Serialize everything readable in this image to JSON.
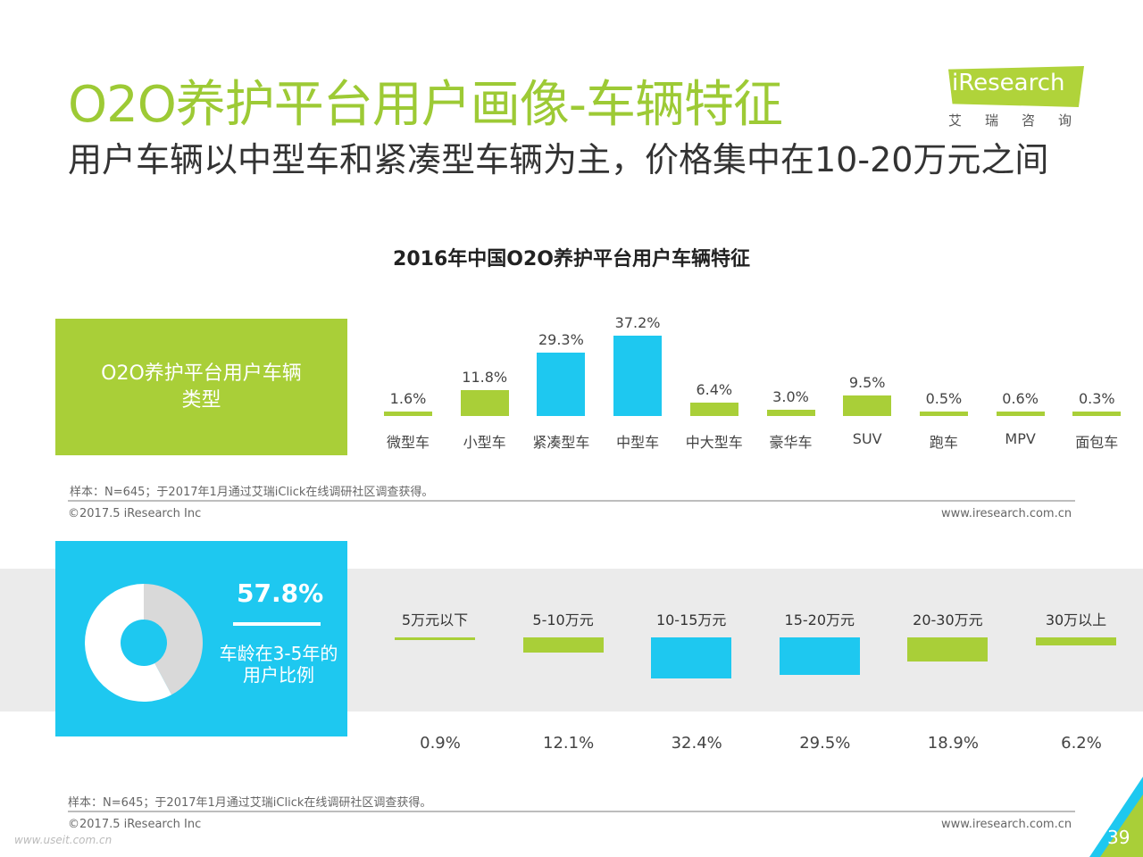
{
  "title": "O2O养护平台用户画像-车辆特征",
  "subtitle": "用户车辆以中型车和紧凑型车辆为主，价格集中在10-20万元之间",
  "logo": {
    "text": "iResearch",
    "sub": "艾瑞咨询"
  },
  "colors": {
    "green": "#a9cf38",
    "blue": "#1ec8f0",
    "gray": "#ebebeb",
    "title": "#9dca35"
  },
  "section1": {
    "panel_label": "O2O养护平台用户车辆类型",
    "note": "样本：N=645；于2017年1月通过艾瑞iClick在线调研社区调查获得。",
    "copyright": "©2017.5 iResearch Inc",
    "url": "www.iresearch.com.cn"
  },
  "section2": {
    "big_pct": "57.8%",
    "donut_label": "车龄在3-5年的用户比例",
    "donut_value": 57.8,
    "note": "样本：N=645；于2017年1月通过艾瑞iClick在线调研社区调查获得。",
    "copyright": "©2017.5 iResearch Inc",
    "url": "www.iresearch.com.cn"
  },
  "page_number": "39",
  "watermark": "www.useit.com.cn",
  "chart_data": [
    {
      "type": "bar",
      "title": "2016年中国O2O养护平台用户车辆特征",
      "categories": [
        "微型车",
        "小型车",
        "紧凑型车",
        "中型车",
        "中大型车",
        "豪华车",
        "SUV",
        "跑车",
        "MPV",
        "面包车"
      ],
      "values": [
        1.6,
        11.8,
        29.3,
        37.2,
        6.4,
        3.0,
        9.5,
        0.5,
        0.6,
        0.3
      ],
      "labels": [
        "1.6%",
        "11.8%",
        "29.3%",
        "37.2%",
        "6.4%",
        "3.0%",
        "9.5%",
        "0.5%",
        "0.6%",
        "0.3%"
      ],
      "highlight": [
        2,
        3
      ]
    },
    {
      "type": "bar",
      "categories": [
        "5万元以下",
        "5-10万元",
        "10-15万元",
        "15-20万元",
        "20-30万元",
        "30万以上"
      ],
      "values": [
        0.9,
        12.1,
        32.4,
        29.5,
        18.9,
        6.2
      ],
      "labels": [
        "0.9%",
        "12.1%",
        "32.4%",
        "29.5%",
        "18.9%",
        "6.2%"
      ],
      "highlight": [
        2,
        3
      ]
    }
  ]
}
